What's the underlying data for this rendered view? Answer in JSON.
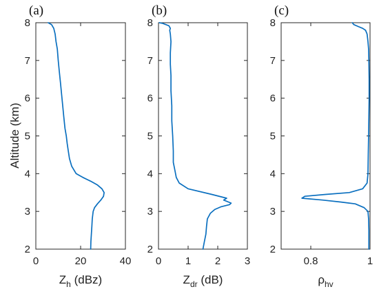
{
  "colors": {
    "series": "#0a6fbf",
    "axis": "#262626",
    "text": "#222222"
  },
  "chart_data": [
    {
      "type": "line",
      "panel_label": "(a)",
      "xlabel": "Z",
      "xlabel_sub": "h",
      "xlabel_unit": " (dBz)",
      "ylabel": "Altitude (km)",
      "xlim": [
        0,
        40
      ],
      "ylim": [
        2,
        8
      ],
      "xticks": [
        "0",
        "20",
        "40"
      ],
      "yticks": [
        "2",
        "3",
        "4",
        "5",
        "6",
        "7",
        "8"
      ],
      "grid": false,
      "series": [
        {
          "x": [
            24.5,
            24.6,
            24.8,
            25,
            25.2,
            25.6,
            26.2,
            27.5,
            29,
            30.2,
            30.5,
            29.5,
            27.5,
            24.5,
            21,
            18,
            16,
            15,
            14.5,
            14,
            13.6,
            13,
            12.5,
            12,
            11.5,
            11,
            10.5,
            10,
            9.6,
            9,
            8.6,
            8,
            7,
            5.5
          ],
          "y": [
            2.0,
            2.2,
            2.4,
            2.6,
            2.8,
            3.0,
            3.1,
            3.2,
            3.3,
            3.4,
            3.5,
            3.6,
            3.7,
            3.8,
            3.9,
            4.0,
            4.2,
            4.4,
            4.6,
            4.8,
            5.0,
            5.2,
            5.5,
            5.8,
            6.1,
            6.4,
            6.7,
            7.0,
            7.3,
            7.5,
            7.7,
            7.85,
            7.95,
            8.0
          ]
        }
      ]
    },
    {
      "type": "line",
      "panel_label": "(b)",
      "xlabel": "Z",
      "xlabel_sub": "dr",
      "xlabel_unit": " (dB)",
      "xlim": [
        0,
        3
      ],
      "ylim": [
        2,
        8
      ],
      "xticks": [
        "0",
        "1",
        "2",
        "3"
      ],
      "yticks": [
        "2",
        "3",
        "4",
        "5",
        "6",
        "7",
        "8"
      ],
      "grid": false,
      "series": [
        {
          "x": [
            1.5,
            1.55,
            1.6,
            1.62,
            1.65,
            1.75,
            1.9,
            2.1,
            2.4,
            2.45,
            2.2,
            2.3,
            1.8,
            1.0,
            0.7,
            0.6,
            0.55,
            0.5,
            0.5,
            0.48,
            0.45,
            0.45,
            0.42,
            0.42,
            0.4,
            0.4,
            0.42,
            0.4,
            0.38,
            0.4,
            0.35,
            0.15,
            0.03
          ],
          "y": [
            2.0,
            2.2,
            2.4,
            2.6,
            2.8,
            2.95,
            3.05,
            3.12,
            3.18,
            3.22,
            3.3,
            3.35,
            3.45,
            3.6,
            3.75,
            3.9,
            4.1,
            4.3,
            4.6,
            5.0,
            5.4,
            5.8,
            6.2,
            6.6,
            6.9,
            7.2,
            7.5,
            7.7,
            7.8,
            7.85,
            7.92,
            7.98,
            8.0
          ]
        }
      ]
    },
    {
      "type": "line",
      "panel_label": "(c)",
      "xlabel": "ρ",
      "xlabel_sub": "hv",
      "xlabel_unit": "",
      "xlim": [
        0.7,
        1.0
      ],
      "xticks": [
        "0.8",
        "1"
      ],
      "xtick_values": [
        0.8,
        1.0
      ],
      "ylim": [
        2,
        8
      ],
      "yticks": [
        "2",
        "3",
        "4",
        "5",
        "6",
        "7",
        "8"
      ],
      "grid": false,
      "series": [
        {
          "x": [
            0.996,
            0.996,
            0.995,
            0.993,
            0.98,
            0.95,
            0.9,
            0.84,
            0.77,
            0.78,
            0.85,
            0.93,
            0.975,
            0.99,
            0.993,
            0.994,
            0.995,
            0.996,
            0.997,
            0.997,
            0.996,
            0.995,
            0.993,
            0.99,
            0.985,
            0.975,
            0.96,
            0.945,
            0.94
          ],
          "y": [
            2.0,
            2.5,
            2.8,
            3.0,
            3.1,
            3.2,
            3.25,
            3.3,
            3.35,
            3.4,
            3.45,
            3.5,
            3.6,
            3.75,
            4.0,
            4.5,
            5.0,
            5.5,
            6.0,
            6.5,
            7.0,
            7.3,
            7.5,
            7.7,
            7.8,
            7.85,
            7.9,
            7.95,
            8.0
          ]
        }
      ]
    }
  ]
}
